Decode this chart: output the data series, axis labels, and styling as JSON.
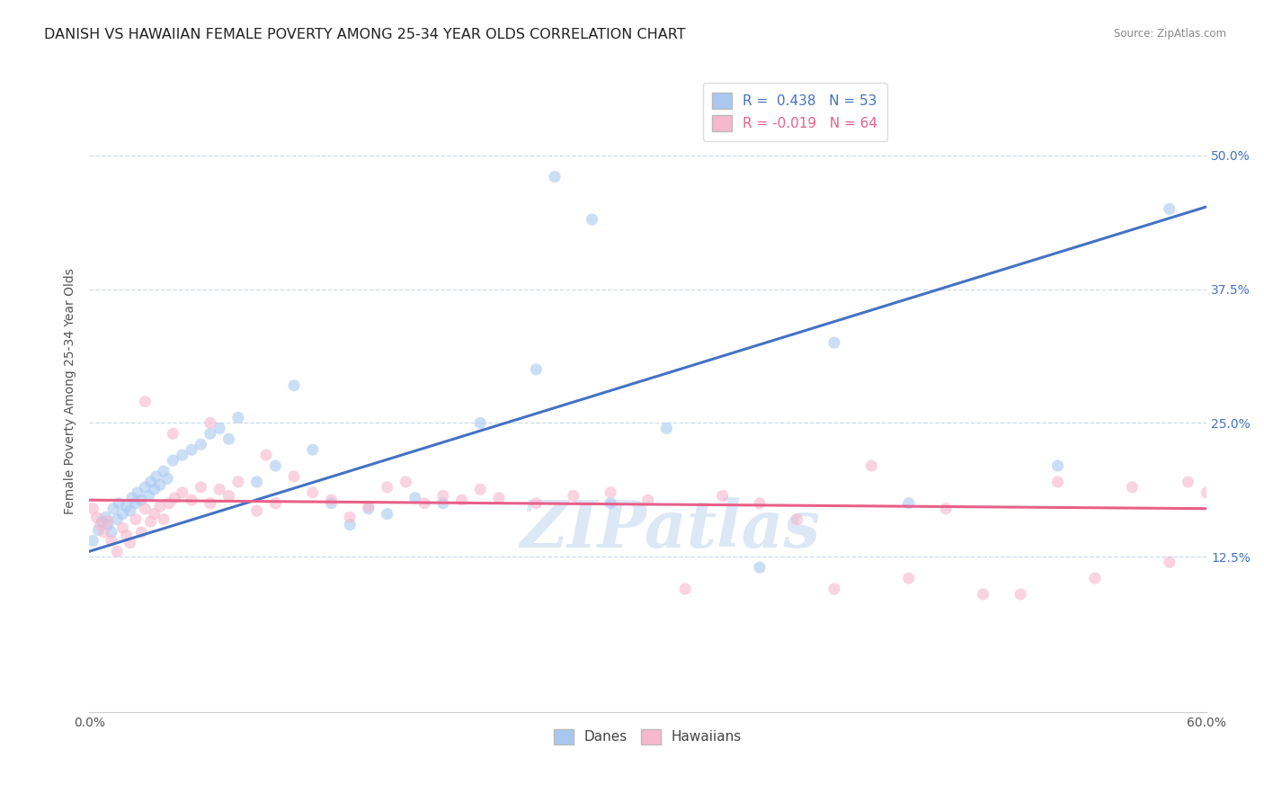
{
  "title": "DANISH VS HAWAIIAN FEMALE POVERTY AMONG 25-34 YEAR OLDS CORRELATION CHART",
  "source": "Source: ZipAtlas.com",
  "ylabel": "Female Poverty Among 25-34 Year Olds",
  "xlim": [
    0.0,
    0.6
  ],
  "ylim": [
    -0.02,
    0.58
  ],
  "xticks": [
    0.0,
    0.1,
    0.2,
    0.3,
    0.4,
    0.5,
    0.6
  ],
  "ytick_positions": [
    0.125,
    0.25,
    0.375,
    0.5
  ],
  "ytick_labels": [
    "12.5%",
    "25.0%",
    "37.5%",
    "50.0%"
  ],
  "danes_R": 0.438,
  "danes_N": 53,
  "hawaiians_R": -0.019,
  "hawaiians_N": 64,
  "danes_color": "#a8c8f0",
  "hawaiians_color": "#f5b8cc",
  "danes_line_color": "#4472c4",
  "hawaiians_line_color": "#e8608a",
  "danes_x": [
    0.002,
    0.005,
    0.007,
    0.009,
    0.01,
    0.012,
    0.013,
    0.015,
    0.016,
    0.018,
    0.02,
    0.022,
    0.023,
    0.025,
    0.026,
    0.028,
    0.03,
    0.032,
    0.033,
    0.035,
    0.036,
    0.038,
    0.04,
    0.042,
    0.045,
    0.05,
    0.055,
    0.06,
    0.065,
    0.07,
    0.075,
    0.08,
    0.09,
    0.1,
    0.11,
    0.12,
    0.13,
    0.14,
    0.15,
    0.16,
    0.175,
    0.19,
    0.21,
    0.24,
    0.28,
    0.31,
    0.36,
    0.4,
    0.44,
    0.52,
    0.58,
    0.25,
    0.27
  ],
  "danes_y": [
    0.14,
    0.15,
    0.158,
    0.162,
    0.155,
    0.148,
    0.17,
    0.16,
    0.175,
    0.165,
    0.172,
    0.168,
    0.18,
    0.175,
    0.185,
    0.178,
    0.19,
    0.182,
    0.195,
    0.188,
    0.2,
    0.192,
    0.205,
    0.198,
    0.215,
    0.22,
    0.225,
    0.23,
    0.24,
    0.245,
    0.235,
    0.255,
    0.195,
    0.21,
    0.285,
    0.225,
    0.175,
    0.155,
    0.17,
    0.165,
    0.18,
    0.175,
    0.25,
    0.3,
    0.175,
    0.245,
    0.115,
    0.325,
    0.175,
    0.21,
    0.45,
    0.48,
    0.44
  ],
  "hawaiians_x": [
    0.002,
    0.004,
    0.006,
    0.008,
    0.01,
    0.012,
    0.015,
    0.018,
    0.02,
    0.022,
    0.025,
    0.028,
    0.03,
    0.033,
    0.035,
    0.038,
    0.04,
    0.043,
    0.046,
    0.05,
    0.055,
    0.06,
    0.065,
    0.07,
    0.075,
    0.08,
    0.09,
    0.1,
    0.11,
    0.12,
    0.13,
    0.14,
    0.15,
    0.16,
    0.17,
    0.18,
    0.19,
    0.2,
    0.21,
    0.22,
    0.24,
    0.26,
    0.28,
    0.3,
    0.32,
    0.34,
    0.36,
    0.38,
    0.4,
    0.42,
    0.44,
    0.46,
    0.48,
    0.5,
    0.52,
    0.54,
    0.56,
    0.58,
    0.59,
    0.6,
    0.03,
    0.065,
    0.095,
    0.045
  ],
  "hawaiians_y": [
    0.17,
    0.162,
    0.155,
    0.148,
    0.158,
    0.14,
    0.13,
    0.152,
    0.145,
    0.138,
    0.16,
    0.148,
    0.17,
    0.158,
    0.165,
    0.172,
    0.16,
    0.175,
    0.18,
    0.185,
    0.178,
    0.19,
    0.175,
    0.188,
    0.182,
    0.195,
    0.168,
    0.175,
    0.2,
    0.185,
    0.178,
    0.162,
    0.172,
    0.19,
    0.195,
    0.175,
    0.182,
    0.178,
    0.188,
    0.18,
    0.175,
    0.182,
    0.185,
    0.178,
    0.095,
    0.182,
    0.175,
    0.16,
    0.095,
    0.21,
    0.105,
    0.17,
    0.09,
    0.09,
    0.195,
    0.105,
    0.19,
    0.12,
    0.195,
    0.185,
    0.27,
    0.25,
    0.22,
    0.24
  ],
  "watermark_color": "#dce8f5",
  "background_color": "#ffffff",
  "grid_color": "#c8d8e8",
  "title_fontsize": 11.5,
  "axis_label_fontsize": 10,
  "tick_fontsize": 10,
  "legend_fontsize": 11,
  "marker_size": 90,
  "marker_alpha": 0.6,
  "line_width": 2.2
}
